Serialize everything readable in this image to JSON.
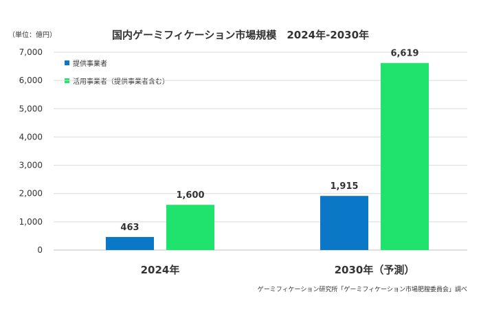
{
  "unit_label": "（単位：億円）",
  "source": "ゲーミフィケーション研究所「ゲーミフィケーション市場肥膣委員会」調べ",
  "colors": {
    "provider": "#0a77c7",
    "user": "#1fe36c",
    "grid": "#d9d9d9",
    "axis": "#bfbfbf"
  },
  "chart_data": {
    "type": "bar",
    "title": "国内ゲーミフィケーション市場規模　2024年-2030年",
    "categories": [
      "2024年",
      "2030年（予測）"
    ],
    "series": [
      {
        "name": "提供事業者",
        "values": [
          463,
          1915
        ],
        "labels": [
          "463",
          "1,915"
        ]
      },
      {
        "name": "活用事業者（提供事業者含む）",
        "values": [
          1600,
          6619
        ],
        "labels": [
          "1,600",
          "6,619"
        ]
      }
    ],
    "ylim": [
      0,
      7000
    ],
    "yticks": [
      0,
      1000,
      2000,
      3000,
      4000,
      5000,
      6000,
      7000
    ],
    "ytick_labels": [
      "0",
      "1,000",
      "2,000",
      "3,000",
      "4,000",
      "5,000",
      "6,000",
      "7,000"
    ],
    "grid": true,
    "legend_position": "top-left",
    "xlabel": "",
    "ylabel": ""
  }
}
